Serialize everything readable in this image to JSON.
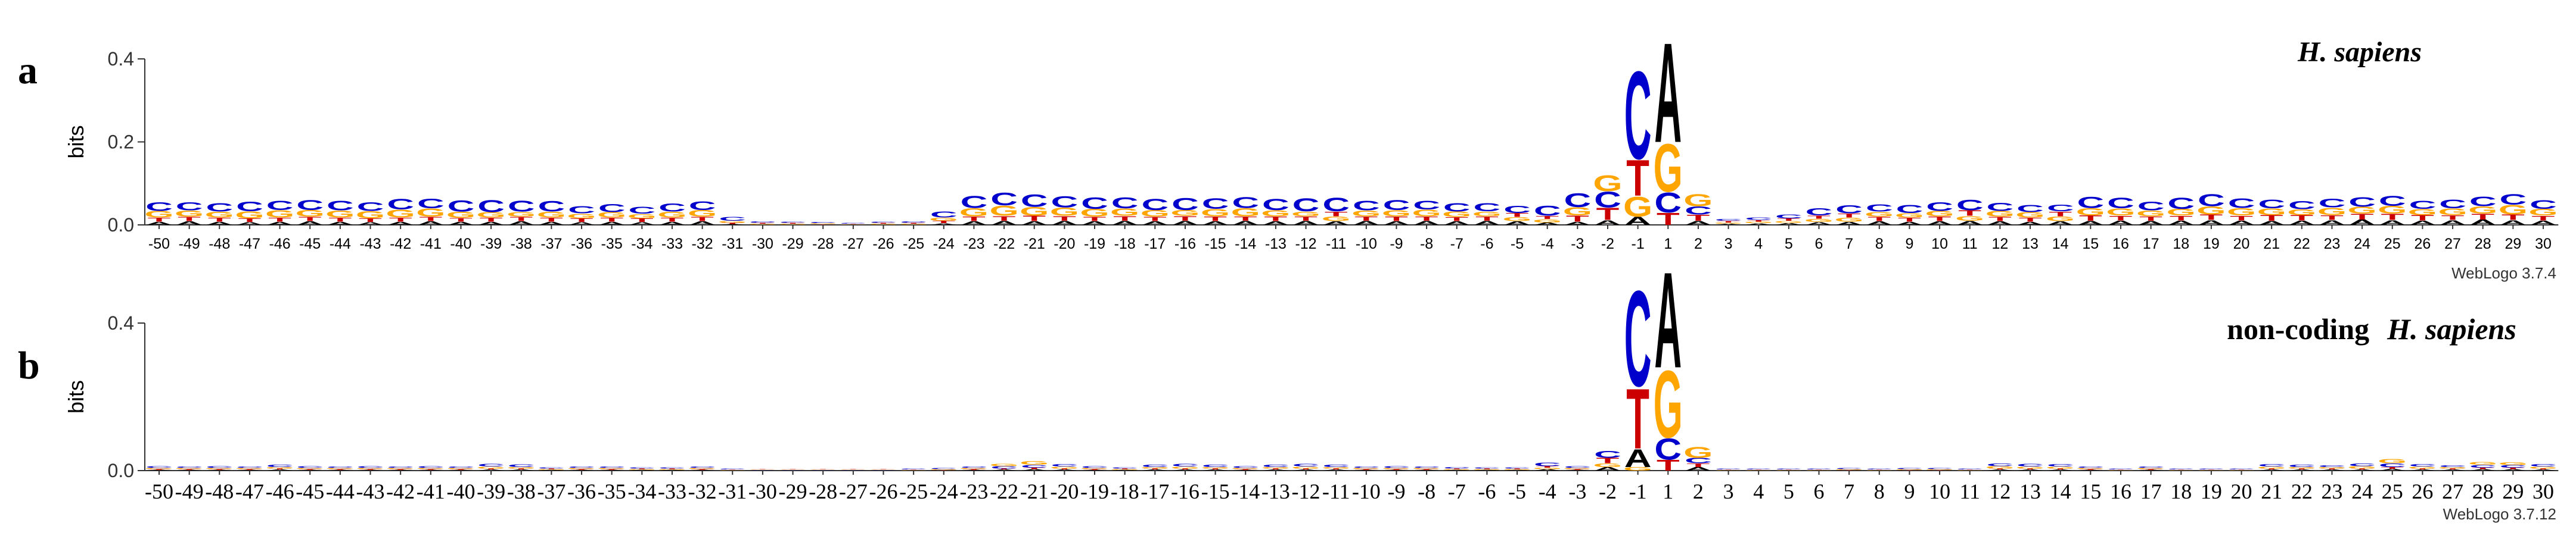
{
  "chart_data": [
    {
      "type": "logo",
      "panel_label": "a",
      "title": "H. sapiens",
      "ylabel": "bits",
      "footnote": "WebLogo 3.7.4",
      "ylim": [
        0,
        0.4
      ],
      "yticks": [
        {
          "value": 0,
          "label": "0.0"
        },
        0.2,
        0.4
      ],
      "categories": [
        "-50",
        "-49",
        "-48",
        "-47",
        "-46",
        "-45",
        "-44",
        "-43",
        "-42",
        "-41",
        "-40",
        "-39",
        "-38",
        "-37",
        "-36",
        "-35",
        "-34",
        "-33",
        "-32",
        "-31",
        "-30",
        "-29",
        "-28",
        "-27",
        "-26",
        "-25",
        "-24",
        "-23",
        "-22",
        "-21",
        "-20",
        "-19",
        "-18",
        "-17",
        "-16",
        "-15",
        "-14",
        "-13",
        "-12",
        "-11",
        "-10",
        "-9",
        "-8",
        "-7",
        "-6",
        "-5",
        "-4",
        "-3",
        "-2",
        "-1",
        "1",
        "2",
        "3",
        "4",
        "5",
        "6",
        "7",
        "8",
        "9",
        "10",
        "11",
        "12",
        "13",
        "14",
        "15",
        "16",
        "17",
        "18",
        "19",
        "20",
        "21",
        "22",
        "23",
        "24",
        "25",
        "26",
        "27",
        "28",
        "29",
        "30"
      ],
      "series": [
        {
          "name": "A",
          "color": "#000000",
          "values": [
            0.008,
            0.009,
            0.008,
            0.007,
            0.008,
            0.009,
            0.008,
            0.007,
            0.008,
            0.009,
            0.008,
            0.008,
            0.009,
            0.008,
            0.007,
            0.008,
            0.007,
            0.008,
            0.009,
            0.002,
            0.001,
            0.001,
            0.001,
            0.001,
            0.001,
            0.001,
            0.004,
            0.009,
            0.01,
            0.009,
            0.01,
            0.009,
            0.01,
            0.009,
            0.01,
            0.009,
            0.01,
            0.009,
            0.01,
            0.009,
            0.01,
            0.009,
            0.01,
            0.009,
            0.01,
            0.009,
            0.006,
            0.008,
            0.012,
            0.02,
            0.25,
            0.01,
            0.003,
            0.004,
            0.005,
            0.007,
            0.008,
            0.009,
            0.008,
            0.009,
            0.01,
            0.009,
            0.008,
            0.009,
            0.01,
            0.011,
            0.01,
            0.011,
            0.012,
            0.011,
            0.01,
            0.011,
            0.012,
            0.013,
            0.012,
            0.011,
            0.012,
            0.013,
            0.012,
            0.011
          ]
        },
        {
          "name": "C",
          "color": "#0000cc",
          "values": [
            0.022,
            0.02,
            0.021,
            0.024,
            0.023,
            0.025,
            0.024,
            0.022,
            0.026,
            0.024,
            0.028,
            0.03,
            0.027,
            0.026,
            0.018,
            0.02,
            0.017,
            0.02,
            0.022,
            0.01,
            0.004,
            0.003,
            0.003,
            0.002,
            0.003,
            0.004,
            0.015,
            0.03,
            0.032,
            0.031,
            0.028,
            0.029,
            0.027,
            0.028,
            0.03,
            0.026,
            0.027,
            0.028,
            0.033,
            0.034,
            0.024,
            0.025,
            0.022,
            0.021,
            0.02,
            0.018,
            0.025,
            0.035,
            0.04,
            0.22,
            0.05,
            0.02,
            0.005,
            0.006,
            0.01,
            0.018,
            0.02,
            0.018,
            0.02,
            0.022,
            0.026,
            0.02,
            0.018,
            0.016,
            0.028,
            0.026,
            0.022,
            0.028,
            0.03,
            0.024,
            0.022,
            0.02,
            0.022,
            0.024,
            0.025,
            0.02,
            0.022,
            0.024,
            0.026,
            0.022
          ]
        },
        {
          "name": "G",
          "color": "#ffa500",
          "values": [
            0.016,
            0.015,
            0.014,
            0.017,
            0.018,
            0.016,
            0.017,
            0.018,
            0.019,
            0.02,
            0.015,
            0.013,
            0.012,
            0.014,
            0.012,
            0.013,
            0.011,
            0.014,
            0.016,
            0.005,
            0.002,
            0.002,
            0.002,
            0.001,
            0.002,
            0.002,
            0.008,
            0.02,
            0.025,
            0.022,
            0.02,
            0.019,
            0.018,
            0.016,
            0.014,
            0.018,
            0.02,
            0.015,
            0.012,
            0.012,
            0.014,
            0.015,
            0.016,
            0.013,
            0.012,
            0.01,
            0.008,
            0.02,
            0.04,
            0.05,
            0.12,
            0.03,
            0.003,
            0.004,
            0.005,
            0.008,
            0.01,
            0.012,
            0.011,
            0.013,
            0.012,
            0.014,
            0.013,
            0.012,
            0.018,
            0.017,
            0.014,
            0.016,
            0.02,
            0.018,
            0.016,
            0.014,
            0.018,
            0.017,
            0.019,
            0.015,
            0.016,
            0.018,
            0.024,
            0.016
          ]
        },
        {
          "name": "T",
          "color": "#cc0000",
          "values": [
            0.01,
            0.011,
            0.01,
            0.009,
            0.01,
            0.011,
            0.01,
            0.009,
            0.01,
            0.011,
            0.009,
            0.01,
            0.011,
            0.01,
            0.009,
            0.01,
            0.009,
            0.01,
            0.011,
            0.003,
            0.002,
            0.002,
            0.001,
            0.001,
            0.002,
            0.002,
            0.006,
            0.012,
            0.012,
            0.013,
            0.012,
            0.011,
            0.012,
            0.011,
            0.012,
            0.012,
            0.011,
            0.012,
            0.011,
            0.012,
            0.011,
            0.012,
            0.011,
            0.01,
            0.011,
            0.01,
            0.008,
            0.015,
            0.03,
            0.09,
            0.03,
            0.015,
            0.004,
            0.004,
            0.006,
            0.008,
            0.01,
            0.011,
            0.01,
            0.012,
            0.013,
            0.011,
            0.01,
            0.012,
            0.013,
            0.012,
            0.011,
            0.012,
            0.013,
            0.012,
            0.014,
            0.013,
            0.012,
            0.014,
            0.015,
            0.013,
            0.012,
            0.014,
            0.013,
            0.012
          ]
        }
      ]
    },
    {
      "type": "logo",
      "panel_label": "b",
      "title_prefix": "non-coding",
      "title": "H. sapiens",
      "ylabel": "bits",
      "footnote": "WebLogo 3.7.12",
      "ylim": [
        0,
        0.4
      ],
      "yticks": [
        {
          "value": 0,
          "label": "0.0"
        },
        0.4
      ],
      "categories": [
        "-50",
        "-49",
        "-48",
        "-47",
        "-46",
        "-45",
        "-44",
        "-43",
        "-42",
        "-41",
        "-40",
        "-39",
        "-38",
        "-37",
        "-36",
        "-35",
        "-34",
        "-33",
        "-32",
        "-31",
        "-30",
        "-29",
        "-28",
        "-27",
        "-26",
        "-25",
        "-24",
        "-23",
        "-22",
        "-21",
        "-20",
        "-19",
        "-18",
        "-17",
        "-16",
        "-15",
        "-14",
        "-13",
        "-12",
        "-11",
        "-10",
        "-9",
        "-8",
        "-7",
        "-6",
        "-5",
        "-4",
        "-3",
        "-2",
        "-1",
        "1",
        "2",
        "3",
        "4",
        "5",
        "6",
        "7",
        "8",
        "9",
        "10",
        "11",
        "12",
        "13",
        "14",
        "15",
        "16",
        "17",
        "18",
        "19",
        "20",
        "21",
        "22",
        "23",
        "24",
        "25",
        "26",
        "27",
        "28",
        "29",
        "30"
      ],
      "series": [
        {
          "name": "A",
          "color": "#000000",
          "values": [
            0.002,
            0.002,
            0.002,
            0.002,
            0.003,
            0.002,
            0.002,
            0.002,
            0.002,
            0.002,
            0.002,
            0.003,
            0.003,
            0.002,
            0.002,
            0.002,
            0.002,
            0.002,
            0.002,
            0.001,
            0.001,
            0.001,
            0.001,
            0.001,
            0.001,
            0.001,
            0.001,
            0.002,
            0.003,
            0.004,
            0.003,
            0.002,
            0.002,
            0.003,
            0.003,
            0.003,
            0.002,
            0.003,
            0.003,
            0.003,
            0.002,
            0.002,
            0.002,
            0.002,
            0.002,
            0.002,
            0.004,
            0.002,
            0.01,
            0.05,
            0.27,
            0.01,
            0.001,
            0.001,
            0.001,
            0.001,
            0.001,
            0.001,
            0.001,
            0.001,
            0.001,
            0.003,
            0.003,
            0.003,
            0.002,
            0.001,
            0.002,
            0.001,
            0.001,
            0.001,
            0.003,
            0.003,
            0.003,
            0.003,
            0.005,
            0.003,
            0.003,
            0.004,
            0.004,
            0.003
          ]
        },
        {
          "name": "C",
          "color": "#0000cc",
          "values": [
            0.005,
            0.004,
            0.005,
            0.004,
            0.006,
            0.005,
            0.004,
            0.005,
            0.004,
            0.005,
            0.004,
            0.008,
            0.007,
            0.003,
            0.004,
            0.004,
            0.003,
            0.003,
            0.004,
            0.002,
            0.001,
            0.001,
            0.001,
            0.001,
            0.001,
            0.002,
            0.003,
            0.004,
            0.006,
            0.008,
            0.006,
            0.005,
            0.003,
            0.006,
            0.007,
            0.006,
            0.005,
            0.006,
            0.007,
            0.006,
            0.004,
            0.005,
            0.004,
            0.004,
            0.003,
            0.003,
            0.01,
            0.005,
            0.02,
            0.27,
            0.06,
            0.015,
            0.002,
            0.002,
            0.002,
            0.002,
            0.003,
            0.002,
            0.003,
            0.003,
            0.002,
            0.008,
            0.007,
            0.006,
            0.004,
            0.002,
            0.004,
            0.002,
            0.002,
            0.002,
            0.006,
            0.006,
            0.005,
            0.007,
            0.01,
            0.006,
            0.005,
            0.008,
            0.007,
            0.006
          ]
        },
        {
          "name": "G",
          "color": "#ffa500",
          "values": [
            0.003,
            0.003,
            0.003,
            0.003,
            0.004,
            0.003,
            0.003,
            0.003,
            0.003,
            0.003,
            0.003,
            0.005,
            0.004,
            0.002,
            0.003,
            0.003,
            0.002,
            0.002,
            0.003,
            0.001,
            0.001,
            0.001,
            0.001,
            0.001,
            0.001,
            0.001,
            0.002,
            0.003,
            0.006,
            0.01,
            0.005,
            0.003,
            0.002,
            0.004,
            0.005,
            0.004,
            0.003,
            0.004,
            0.005,
            0.004,
            0.003,
            0.003,
            0.003,
            0.002,
            0.002,
            0.002,
            0.004,
            0.003,
            0.01,
            0.01,
            0.19,
            0.03,
            0.001,
            0.001,
            0.001,
            0.001,
            0.002,
            0.001,
            0.002,
            0.002,
            0.001,
            0.006,
            0.005,
            0.005,
            0.003,
            0.001,
            0.003,
            0.001,
            0.001,
            0.001,
            0.005,
            0.004,
            0.004,
            0.006,
            0.012,
            0.005,
            0.004,
            0.008,
            0.007,
            0.005
          ]
        },
        {
          "name": "T",
          "color": "#cc0000",
          "values": [
            0.002,
            0.002,
            0.002,
            0.002,
            0.003,
            0.002,
            0.002,
            0.002,
            0.002,
            0.002,
            0.002,
            0.003,
            0.003,
            0.002,
            0.002,
            0.002,
            0.002,
            0.002,
            0.002,
            0.001,
            0.001,
            0.001,
            0.001,
            0.001,
            0.001,
            0.001,
            0.001,
            0.002,
            0.003,
            0.004,
            0.003,
            0.002,
            0.002,
            0.003,
            0.003,
            0.003,
            0.002,
            0.003,
            0.003,
            0.003,
            0.002,
            0.002,
            0.002,
            0.002,
            0.002,
            0.002,
            0.004,
            0.002,
            0.015,
            0.17,
            0.03,
            0.01,
            0.001,
            0.001,
            0.001,
            0.001,
            0.001,
            0.001,
            0.001,
            0.001,
            0.001,
            0.003,
            0.003,
            0.003,
            0.002,
            0.001,
            0.002,
            0.001,
            0.001,
            0.001,
            0.003,
            0.003,
            0.003,
            0.003,
            0.005,
            0.003,
            0.003,
            0.004,
            0.004,
            0.003
          ]
        }
      ]
    }
  ]
}
